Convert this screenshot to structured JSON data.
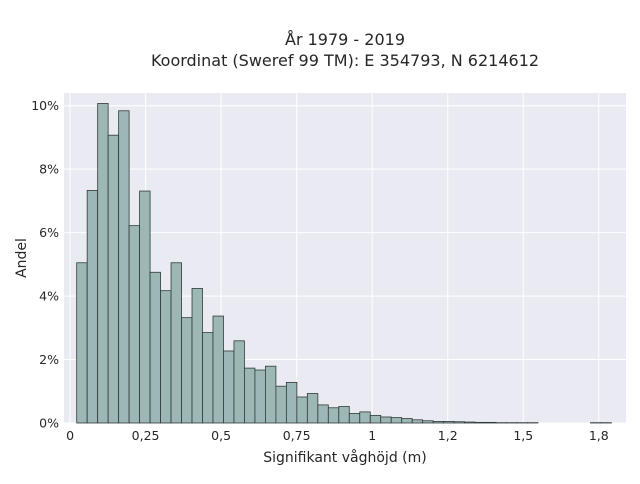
{
  "chart_data": {
    "type": "bar",
    "title": [
      "År 1979 - 2019",
      "Koordinat (Sweref 99 TM): E 354793, N 6214612"
    ],
    "xlabel": "Signifikant våghöjd (m)",
    "ylabel": "Andel",
    "xlim": [
      -0.02,
      1.84
    ],
    "ylim": [
      0,
      10.4
    ],
    "x_ticks": [
      {
        "value": 0,
        "label": "0"
      },
      {
        "value": 0.25,
        "label": "0,25"
      },
      {
        "value": 0.5,
        "label": "0,5"
      },
      {
        "value": 0.75,
        "label": "0,75"
      },
      {
        "value": 1.0,
        "label": "1"
      },
      {
        "value": 1.25,
        "label": "1,2"
      },
      {
        "value": 1.5,
        "label": "1,5"
      },
      {
        "value": 1.75,
        "label": "1,8"
      }
    ],
    "y_ticks": [
      {
        "value": 0,
        "label": "0%"
      },
      {
        "value": 2,
        "label": "2%"
      },
      {
        "value": 4,
        "label": "4%"
      },
      {
        "value": 6,
        "label": "6%"
      },
      {
        "value": 8,
        "label": "8%"
      },
      {
        "value": 10,
        "label": "10%"
      }
    ],
    "bin_width": 0.0347,
    "bin_starts": [
      0.022,
      0.0567,
      0.0914,
      0.1261,
      0.1608,
      0.1955,
      0.2302,
      0.2649,
      0.2996,
      0.3343,
      0.369,
      0.4037,
      0.4384,
      0.4731,
      0.5078,
      0.5425,
      0.5772,
      0.6119,
      0.6466,
      0.6813,
      0.716,
      0.7507,
      0.7854,
      0.8201,
      0.8548,
      0.8895,
      0.9242,
      0.9589,
      0.9936,
      1.0283,
      1.063,
      1.0977,
      1.1324,
      1.1671,
      1.2018,
      1.2365,
      1.2712,
      1.3059,
      1.3406,
      1.3753,
      1.41,
      1.4447,
      1.4794,
      1.5141,
      1.5488,
      1.5835,
      1.6182,
      1.6529,
      1.6876,
      1.7223,
      1.757
    ],
    "values": [
      5.05,
      7.33,
      10.07,
      9.07,
      9.84,
      6.22,
      7.31,
      4.75,
      4.17,
      5.05,
      3.32,
      4.24,
      2.85,
      3.37,
      2.27,
      2.59,
      1.73,
      1.67,
      1.79,
      1.16,
      1.28,
      0.82,
      0.93,
      0.57,
      0.48,
      0.52,
      0.3,
      0.35,
      0.24,
      0.19,
      0.17,
      0.14,
      0.1,
      0.07,
      0.05,
      0.05,
      0.04,
      0.03,
      0.02,
      0.02,
      0.01,
      0.01,
      0.01,
      0.01,
      0.0,
      0.0,
      0.0,
      0.0,
      0.0,
      0.01,
      0.01
    ],
    "grid": true,
    "legend": "none",
    "colors": {
      "bar_fill": "#9db6b6",
      "bar_edge": "#2f3b3b",
      "plot_background": "#eaeaf2",
      "grid": "#ffffff"
    }
  }
}
